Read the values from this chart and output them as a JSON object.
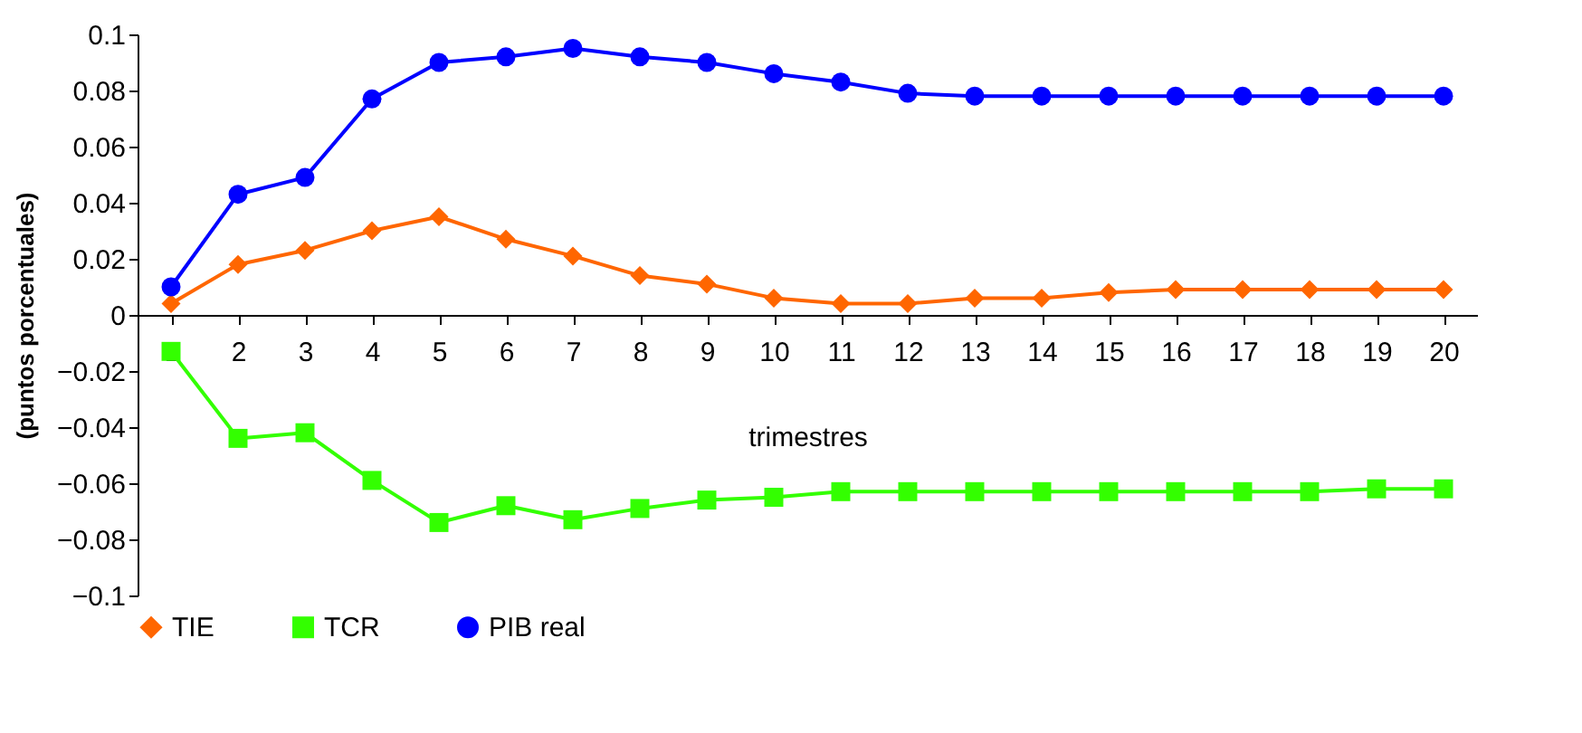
{
  "chart_data": {
    "type": "line",
    "ylabel": "(puntos porcentuales)",
    "xlabel": "trimestres",
    "categories": [
      "1",
      "2",
      "3",
      "4",
      "5",
      "6",
      "7",
      "8",
      "9",
      "10",
      "11",
      "12",
      "13",
      "14",
      "15",
      "16",
      "17",
      "18",
      "19",
      "20"
    ],
    "series": [
      {
        "name": "TIE",
        "color": "#ff6600",
        "marker": "diamond",
        "values": [
          0.004,
          0.018,
          0.023,
          0.03,
          0.035,
          0.027,
          0.021,
          0.014,
          0.011,
          0.006,
          0.004,
          0.004,
          0.006,
          0.006,
          0.008,
          0.009,
          0.009,
          0.009,
          0.009,
          0.009
        ]
      },
      {
        "name": "TCR",
        "color": "#33ff00",
        "marker": "square",
        "values": [
          -0.013,
          -0.044,
          -0.042,
          -0.059,
          -0.074,
          -0.068,
          -0.073,
          -0.069,
          -0.066,
          -0.065,
          -0.063,
          -0.063,
          -0.063,
          -0.063,
          -0.063,
          -0.063,
          -0.063,
          -0.063,
          -0.062,
          -0.062
        ]
      },
      {
        "name": "PIB real",
        "color": "#0000ff",
        "marker": "circle",
        "values": [
          0.01,
          0.043,
          0.049,
          0.077,
          0.09,
          0.092,
          0.095,
          0.092,
          0.09,
          0.086,
          0.083,
          0.079,
          0.078,
          0.078,
          0.078,
          0.078,
          0.078,
          0.078,
          0.078,
          0.078
        ]
      }
    ],
    "ylim": [
      -0.1,
      0.1
    ],
    "yticks": [
      -0.1,
      -0.08,
      -0.06,
      -0.04,
      -0.02,
      0,
      0.02,
      0.04,
      0.06,
      0.08,
      0.1
    ],
    "grid": false,
    "legend": "bottom",
    "line_style": "solid"
  }
}
